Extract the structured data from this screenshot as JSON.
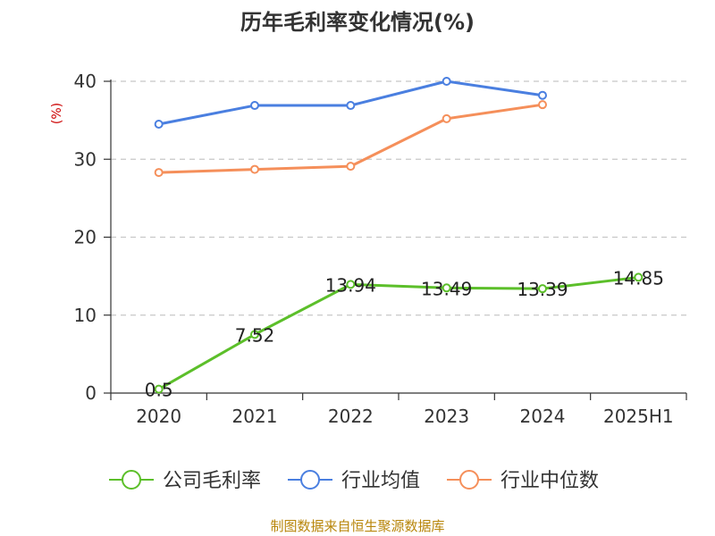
{
  "chart_data": {
    "type": "line",
    "title": "历年毛利率变化情况(%)",
    "ylabel": "(%)",
    "xlabel": "",
    "categories": [
      "2020",
      "2021",
      "2022",
      "2023",
      "2024",
      "2025H1"
    ],
    "ylim": [
      0,
      40
    ],
    "yticks": [
      "0",
      "10",
      "20",
      "30",
      "40"
    ],
    "grid": "horizontal-dashed",
    "legend_position": "bottom",
    "series": [
      {
        "name": "公司毛利率",
        "color": "#5cbf2a",
        "values": [
          0.5,
          7.52,
          13.94,
          13.49,
          13.39,
          14.85
        ],
        "data_labels": [
          "0.5",
          "7.52",
          "13.94",
          "13.49",
          "13.39",
          "14.85"
        ]
      },
      {
        "name": "行业均值",
        "color": "#4a7fe0",
        "values": [
          34.5,
          36.9,
          36.9,
          40.0,
          38.2,
          null
        ]
      },
      {
        "name": "行业中位数",
        "color": "#f58f5a",
        "values": [
          28.3,
          28.7,
          29.1,
          35.2,
          37.0,
          null
        ]
      }
    ]
  },
  "footer": {
    "source": "制图数据来自恒生聚源数据库"
  }
}
